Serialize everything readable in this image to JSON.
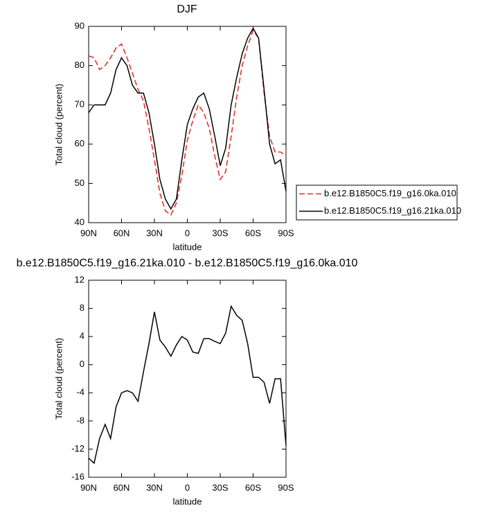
{
  "chart_data": [
    {
      "type": "line",
      "title": "DJF",
      "xlabel": "latitude",
      "ylabel": "Total cloud (percent)",
      "x": [
        90,
        85,
        80,
        75,
        70,
        65,
        60,
        55,
        50,
        45,
        40,
        35,
        30,
        25,
        20,
        15,
        10,
        5,
        0,
        -5,
        -10,
        -15,
        -20,
        -25,
        -30,
        -35,
        -40,
        -45,
        -50,
        -55,
        -60,
        -65,
        -70,
        -75,
        -80,
        -85,
        -90
      ],
      "xlim": [
        90,
        -90
      ],
      "xticks": [
        {
          "value": 90,
          "label": "90N"
        },
        {
          "value": 60,
          "label": "60N"
        },
        {
          "value": 30,
          "label": "30N"
        },
        0,
        {
          "value": -30,
          "label": "30S"
        },
        {
          "value": -60,
          "label": "60S"
        },
        {
          "value": -90,
          "label": "90S"
        }
      ],
      "ylim": [
        40,
        90
      ],
      "yticks": [
        40,
        50,
        60,
        70,
        80,
        90
      ],
      "legend": "right",
      "series": [
        {
          "name": "b.e12.B1850C5.f19_g16.0ka.010",
          "color": "#e8231e",
          "line_style": "dashed",
          "values": [
            82.5,
            82,
            79,
            80,
            82,
            84.5,
            85.5,
            82,
            78,
            74,
            71,
            64,
            56,
            47.5,
            43,
            42,
            45,
            52,
            61,
            66,
            70,
            68,
            64,
            57,
            51,
            53,
            62,
            72,
            80,
            85,
            89,
            87,
            73,
            62,
            58,
            58,
            57
          ]
        },
        {
          "name": "b.e12.B1850C5.f19_g16.21ka.010",
          "color": "#000000",
          "line_style": "solid",
          "values": [
            68,
            70,
            70,
            70,
            73,
            79,
            82,
            80,
            75,
            73,
            73,
            68,
            60,
            51,
            46,
            43.5,
            46,
            56,
            65,
            69,
            72,
            73,
            69,
            62,
            54.5,
            59,
            70,
            77,
            83,
            87,
            89.5,
            87,
            74,
            60,
            55,
            56,
            48
          ]
        }
      ]
    },
    {
      "type": "line",
      "title": "b.e12.B1850C5.f19_g16.21ka.010 - b.e12.B1850C5.f19_g16.0ka.010",
      "xlabel": "latitude",
      "ylabel": "Total cloud (percent)",
      "x": [
        90,
        85,
        80,
        75,
        70,
        65,
        60,
        55,
        50,
        45,
        40,
        35,
        30,
        25,
        20,
        15,
        10,
        5,
        0,
        -5,
        -10,
        -15,
        -20,
        -25,
        -30,
        -35,
        -40,
        -45,
        -50,
        -55,
        -60,
        -65,
        -70,
        -75,
        -80,
        -85,
        -90
      ],
      "xlim": [
        90,
        -90
      ],
      "xticks": [
        {
          "value": 90,
          "label": "90N"
        },
        {
          "value": 60,
          "label": "60N"
        },
        {
          "value": 30,
          "label": "30N"
        },
        0,
        {
          "value": -30,
          "label": "30S"
        },
        {
          "value": -60,
          "label": "60S"
        },
        {
          "value": -90,
          "label": "90S"
        }
      ],
      "ylim": [
        -16,
        12
      ],
      "yticks": [
        -16,
        -12,
        -8,
        -4,
        0,
        4,
        8,
        12
      ],
      "series": [
        {
          "color": "#000000",
          "line_style": "solid",
          "values": [
            -13.3,
            -14,
            -10.5,
            -8.5,
            -10.5,
            -6,
            -4,
            -3.7,
            -4,
            -5.2,
            -1,
            3,
            7.5,
            3.5,
            2.5,
            1.2,
            2.8,
            4,
            3.5,
            1.8,
            1.6,
            3.7,
            3.7,
            3.3,
            3,
            4.5,
            8.3,
            7,
            6.3,
            3,
            -1.8,
            -1.8,
            -2.5,
            -5.5,
            -2,
            -2,
            -11.5
          ]
        }
      ]
    }
  ]
}
